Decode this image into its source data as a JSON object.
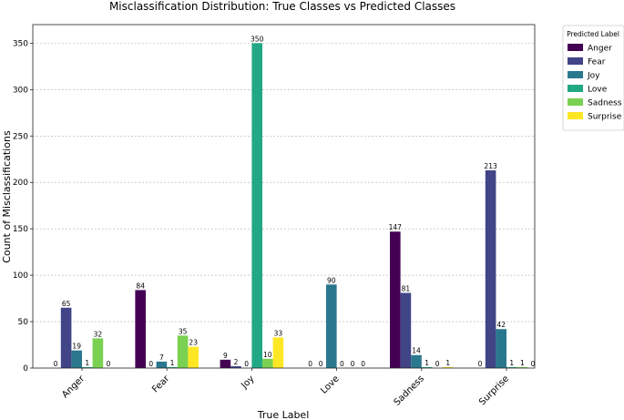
{
  "chart_data": {
    "type": "bar",
    "title": "Misclassification Distribution: True Classes vs Predicted Classes",
    "xlabel": "True Label",
    "ylabel": "Count of Misclassifications",
    "ylim": [
      0,
      370
    ],
    "yticks": [
      0,
      50,
      100,
      150,
      200,
      250,
      300,
      350
    ],
    "grid": true,
    "legend": {
      "title": "Predicted Label",
      "placement": "outside-top-right"
    },
    "categories": [
      "Anger",
      "Fear",
      "Joy",
      "Love",
      "Sadness",
      "Surprise"
    ],
    "series": [
      {
        "name": "Anger",
        "color": "#440154",
        "values": [
          0,
          84,
          9,
          0,
          147,
          0
        ]
      },
      {
        "name": "Fear",
        "color": "#414487",
        "values": [
          65,
          0,
          2,
          0,
          81,
          213
        ]
      },
      {
        "name": "Joy",
        "color": "#2a788e",
        "values": [
          19,
          7,
          0,
          90,
          14,
          42
        ]
      },
      {
        "name": "Love",
        "color": "#22a884",
        "values": [
          1,
          1,
          350,
          0,
          1,
          1
        ]
      },
      {
        "name": "Sadness",
        "color": "#7ad151",
        "values": [
          32,
          35,
          10,
          0,
          0,
          1
        ]
      },
      {
        "name": "Surprise",
        "color": "#fde725",
        "values": [
          0,
          23,
          33,
          0,
          1,
          0
        ]
      }
    ]
  }
}
